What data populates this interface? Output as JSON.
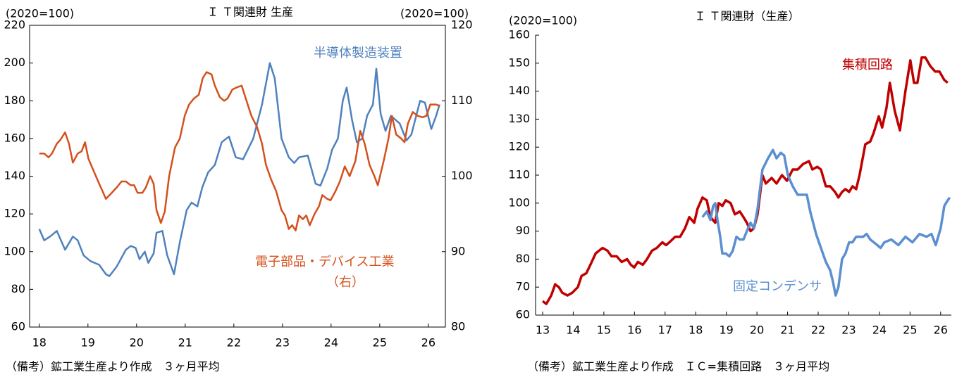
{
  "chart_data": [
    {
      "type": "line",
      "title": "Ｉ Ｔ関連財 生産",
      "ylabel": "(2020=100)",
      "y2label": "(2020=100)",
      "note": "（備考）鉱工業生産より作成　３ヶ月平均",
      "annotations": [
        "（右）"
      ],
      "xlim": [
        17.8,
        26.35
      ],
      "xticks": [
        18,
        19,
        20,
        21,
        22,
        23,
        24,
        25,
        26
      ],
      "ylim": [
        60,
        220
      ],
      "yticks": [
        60,
        80,
        100,
        120,
        140,
        160,
        180,
        200,
        220
      ],
      "y2lim": [
        80,
        120
      ],
      "y2ticks": [
        80,
        90,
        100,
        110,
        120
      ],
      "grid": false,
      "series": [
        {
          "name": "半導体製造装置",
          "color": "#4f81bd",
          "x": [
            18.0,
            18.1,
            18.22,
            18.36,
            18.53,
            18.69,
            18.79,
            18.91,
            19.05,
            19.23,
            19.37,
            19.44,
            19.59,
            19.78,
            19.88,
            19.98,
            20.06,
            20.17,
            20.24,
            20.35,
            20.41,
            20.53,
            20.63,
            20.77,
            20.89,
            21.03,
            21.13,
            21.25,
            21.35,
            21.47,
            21.61,
            21.75,
            21.9,
            22.04,
            22.19,
            22.4,
            22.58,
            22.74,
            22.84,
            22.98,
            23.13,
            23.24,
            23.34,
            23.52,
            23.68,
            23.78,
            23.92,
            24.02,
            24.14,
            24.24,
            24.32,
            24.43,
            24.53,
            24.64,
            24.74,
            24.86,
            24.93,
            25.02,
            25.12,
            25.23,
            25.41,
            25.55,
            25.65,
            25.83,
            25.93,
            26.06,
            26.16,
            26.23
          ],
          "values": [
            112,
            106,
            108,
            111,
            101,
            108,
            106,
            98,
            95,
            93,
            88,
            87,
            92,
            101,
            103,
            102,
            96,
            100,
            94,
            99,
            110,
            111,
            98,
            88,
            105,
            122,
            126,
            124,
            134,
            142,
            146,
            158,
            161,
            150,
            149,
            160,
            178,
            200,
            192,
            160,
            150,
            147,
            150,
            151,
            136,
            135,
            144,
            154,
            160,
            180,
            187,
            170,
            158,
            160,
            172,
            178,
            197,
            173,
            164,
            172,
            168,
            159,
            162,
            180,
            179,
            165,
            172,
            178
          ]
        },
        {
          "name": "電子部品・デバイス工業",
          "color": "#d4501c",
          "axis": "y2",
          "x": [
            18.0,
            18.1,
            18.19,
            18.26,
            18.36,
            18.43,
            18.53,
            18.61,
            18.69,
            18.79,
            18.87,
            18.94,
            19.01,
            19.13,
            19.23,
            19.3,
            19.37,
            19.49,
            19.59,
            19.69,
            19.78,
            19.88,
            19.95,
            20.02,
            20.12,
            20.19,
            20.28,
            20.35,
            20.41,
            20.5,
            20.58,
            20.67,
            20.79,
            20.89,
            20.99,
            21.08,
            21.18,
            21.28,
            21.36,
            21.44,
            21.54,
            21.61,
            21.71,
            21.8,
            21.87,
            21.97,
            22.07,
            22.16,
            22.26,
            22.36,
            22.48,
            22.58,
            22.66,
            22.77,
            22.87,
            22.98,
            23.05,
            23.13,
            23.2,
            23.27,
            23.34,
            23.42,
            23.49,
            23.56,
            23.66,
            23.75,
            23.82,
            23.92,
            23.99,
            24.09,
            24.18,
            24.28,
            24.38,
            24.5,
            24.6,
            24.69,
            24.79,
            24.89,
            24.96,
            25.08,
            25.18,
            25.25,
            25.34,
            25.44,
            25.51,
            25.58,
            25.68,
            25.78,
            25.88,
            25.96,
            26.04,
            26.16,
            26.23
          ],
          "values": [
            103,
            103,
            102.5,
            103,
            104.3,
            104.8,
            105.8,
            104.3,
            101.8,
            103,
            103.3,
            104.5,
            102.3,
            100.5,
            99,
            98,
            97,
            97.8,
            98.5,
            99.3,
            99.3,
            98.8,
            98.8,
            97.8,
            97.8,
            98.5,
            100,
            99,
            95.5,
            93.8,
            95.3,
            100,
            103.8,
            105,
            108,
            109.5,
            110.3,
            110.8,
            113,
            113.8,
            113.5,
            112,
            110.5,
            110,
            110.3,
            111.5,
            111.8,
            112,
            110,
            108,
            106.5,
            104.3,
            101.5,
            99.5,
            98,
            95.5,
            94.8,
            93,
            93.5,
            92.8,
            94.8,
            94.3,
            94.8,
            93.5,
            95,
            96,
            97.5,
            97,
            96.8,
            98,
            99.3,
            101.3,
            100,
            102,
            106,
            104.3,
            101.5,
            100,
            98.8,
            102,
            105,
            108,
            105.5,
            105,
            104.5,
            107,
            108.5,
            108,
            107.8,
            108,
            109.5,
            109.5,
            109.3
          ]
        }
      ]
    },
    {
      "type": "line",
      "title": "Ｉ Ｔ関連財（生産）",
      "ylabel": "(2020=100)",
      "note": "（備考）鉱工業生産より作成　ＩＣ=集積回路　３ヶ月平均",
      "xlim": [
        12.77,
        26.35
      ],
      "xticks": [
        13,
        14,
        15,
        16,
        17,
        18,
        19,
        20,
        21,
        22,
        23,
        24,
        25,
        26
      ],
      "ylim": [
        60,
        160
      ],
      "yticks": [
        60,
        70,
        80,
        90,
        100,
        110,
        120,
        130,
        140,
        150,
        160
      ],
      "grid": false,
      "series": [
        {
          "name": "集積回路",
          "color": "#c00000",
          "x": [
            13.0,
            13.12,
            13.28,
            13.41,
            13.53,
            13.64,
            13.81,
            13.97,
            14.15,
            14.27,
            14.43,
            14.56,
            14.73,
            14.84,
            14.96,
            15.12,
            15.25,
            15.42,
            15.58,
            15.76,
            15.88,
            15.99,
            16.11,
            16.27,
            16.41,
            16.57,
            16.73,
            16.91,
            17.03,
            17.14,
            17.33,
            17.49,
            17.65,
            17.79,
            17.95,
            18.06,
            18.22,
            18.36,
            18.48,
            18.64,
            18.75,
            18.87,
            18.98,
            19.14,
            19.28,
            19.44,
            19.56,
            19.67,
            19.79,
            19.9,
            20.02,
            20.18,
            20.29,
            20.48,
            20.64,
            20.82,
            20.98,
            21.17,
            21.33,
            21.51,
            21.7,
            21.81,
            21.97,
            22.09,
            22.25,
            22.39,
            22.55,
            22.66,
            22.78,
            22.89,
            23.01,
            23.12,
            23.24,
            23.35,
            23.54,
            23.7,
            23.81,
            23.98,
            24.09,
            24.23,
            24.34,
            24.5,
            24.67,
            24.85,
            25.01,
            25.13,
            25.24,
            25.38,
            25.5,
            25.66,
            25.82,
            25.96,
            26.12,
            26.23
          ],
          "values": [
            65,
            64,
            67,
            71,
            70,
            68,
            67,
            68,
            70,
            74,
            75,
            78,
            82,
            83,
            84,
            83,
            81,
            81,
            79,
            80,
            78,
            77,
            79,
            78,
            80,
            83,
            84,
            86,
            85,
            86,
            88,
            88,
            91,
            95,
            93,
            98,
            102,
            101,
            95,
            93,
            100,
            99,
            101,
            100,
            96,
            97,
            95,
            93,
            90,
            91,
            96,
            110,
            107,
            109,
            107,
            110,
            108,
            112,
            112,
            114,
            115,
            112,
            113,
            112,
            106,
            106,
            104,
            102,
            104,
            105,
            104,
            106,
            105,
            110,
            121,
            122,
            125,
            131,
            127,
            134,
            143,
            133,
            126,
            140,
            151,
            143,
            143,
            152,
            152,
            149,
            147,
            147,
            144,
            143
          ]
        },
        {
          "name": "固定コンデンサ",
          "color": "#5b8fd0",
          "x": [
            18.22,
            18.36,
            18.48,
            18.57,
            18.64,
            18.71,
            18.8,
            18.87,
            18.98,
            19.1,
            19.21,
            19.33,
            19.44,
            19.56,
            19.67,
            19.79,
            19.9,
            20.02,
            20.18,
            20.36,
            20.52,
            20.64,
            20.78,
            20.89,
            21.01,
            21.17,
            21.33,
            21.63,
            21.74,
            21.93,
            22.09,
            22.25,
            22.39,
            22.48,
            22.57,
            22.66,
            22.78,
            22.89,
            23.01,
            23.12,
            23.24,
            23.47,
            23.58,
            23.7,
            23.93,
            24.04,
            24.16,
            24.39,
            24.62,
            24.85,
            25.08,
            25.31,
            25.54,
            25.7,
            25.84,
            26.0,
            26.12,
            26.23,
            26.3
          ],
          "values": [
            95,
            97,
            94,
            99,
            100,
            94,
            88,
            82,
            82,
            81,
            83,
            88,
            87,
            87,
            90,
            93,
            91,
            98,
            112,
            116,
            119,
            116,
            118,
            117,
            110,
            106,
            103,
            103,
            97,
            89,
            84,
            79,
            76,
            72,
            67,
            70,
            80,
            82,
            86,
            86,
            88,
            88,
            89,
            87,
            85,
            84,
            86,
            87,
            85,
            88,
            86,
            89,
            88,
            89,
            85,
            91,
            99,
            101,
            102
          ]
        }
      ]
    }
  ]
}
